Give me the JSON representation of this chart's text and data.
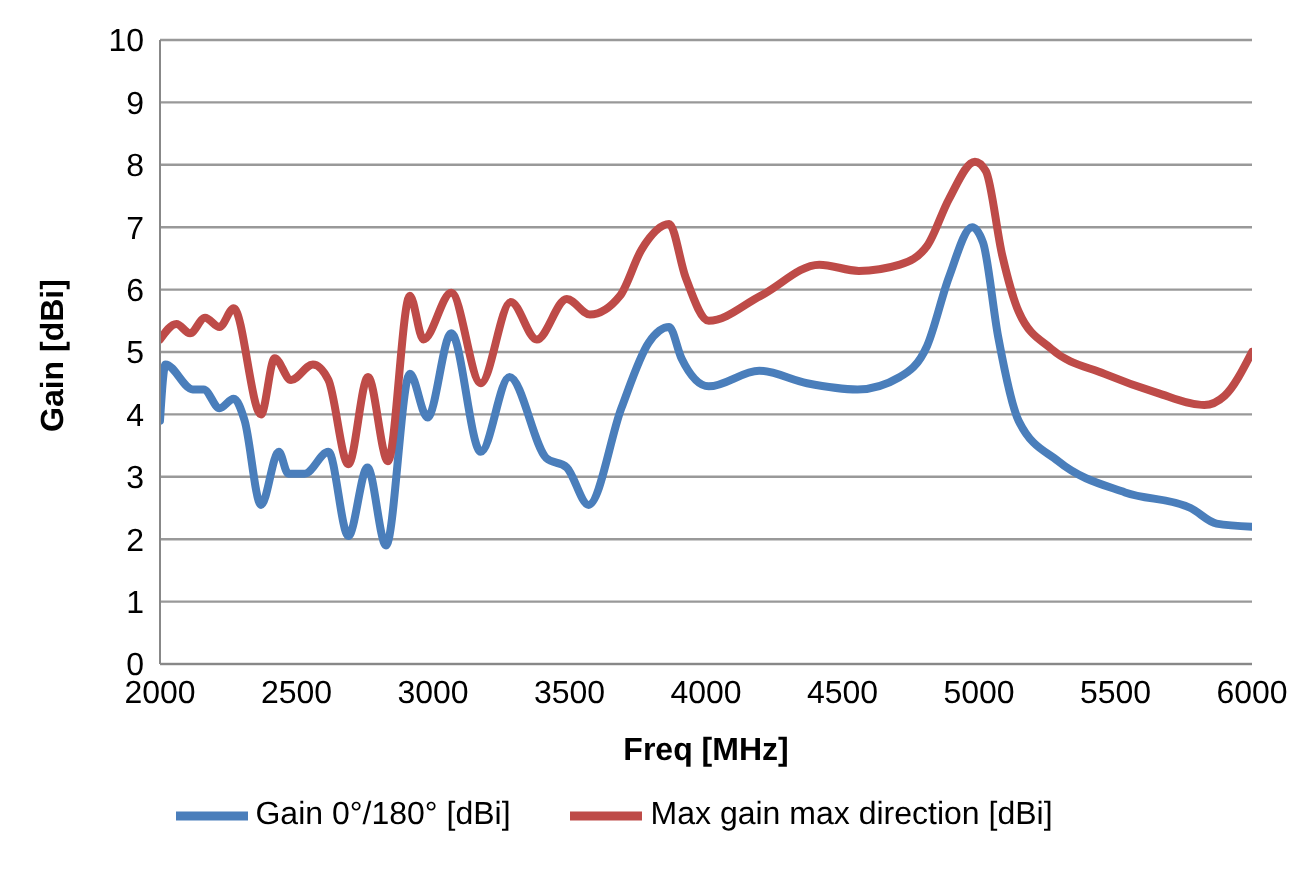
{
  "chart_data": {
    "type": "line",
    "xlabel": "Freq [MHz]",
    "ylabel": "Gain [dBi]",
    "xlim": [
      2000,
      6000
    ],
    "xticks": [
      2000,
      2500,
      3000,
      3500,
      4000,
      4500,
      5000,
      5500,
      6000
    ],
    "ylim": [
      0,
      10
    ],
    "yticks": [
      0,
      1,
      2,
      3,
      4,
      5,
      6,
      7,
      8,
      9,
      10
    ],
    "grid": "y",
    "legend": "bottom",
    "marker": "none",
    "line_style": "solid",
    "series": [
      {
        "name": "Gain 0°/180° [dBi]",
        "color": "#4a7ebb",
        "x": [
          2000,
          2020,
          2120,
          2160,
          2218,
          2270,
          2310,
          2370,
          2435,
          2470,
          2530,
          2617,
          2690,
          2760,
          2828,
          2915,
          2980,
          3067,
          3175,
          3280,
          3415,
          3490,
          3570,
          3690,
          3790,
          3865,
          3910,
          4010,
          4195,
          4370,
          4555,
          4710,
          4810,
          4890,
          4975,
          5015,
          5070,
          5145,
          5290,
          5535,
          5775,
          5870,
          6000
        ],
        "values": [
          3.9,
          4.8,
          4.4,
          4.4,
          4.1,
          4.25,
          3.9,
          2.55,
          3.4,
          3.05,
          3.05,
          3.4,
          2.05,
          3.15,
          1.9,
          4.65,
          3.95,
          5.3,
          3.4,
          4.6,
          3.3,
          3.15,
          2.55,
          4.1,
          5.15,
          5.4,
          4.9,
          4.45,
          4.7,
          4.5,
          4.4,
          4.6,
          5.1,
          6.2,
          7.0,
          6.75,
          5.25,
          3.9,
          3.25,
          2.75,
          2.5,
          2.25,
          2.2
        ]
      },
      {
        "name": "Max gain max direction [dBi]",
        "color": "#be4b48",
        "x": [
          2000,
          2060,
          2110,
          2165,
          2218,
          2270,
          2370,
          2420,
          2480,
          2560,
          2617,
          2690,
          2762,
          2835,
          2915,
          2965,
          3067,
          3175,
          3285,
          3380,
          3490,
          3575,
          3685,
          3765,
          3865,
          3925,
          4010,
          4200,
          4415,
          4560,
          4710,
          4810,
          4890,
          4985,
          5025,
          5085,
          5145,
          5265,
          5460,
          5650,
          5825,
          5900,
          6000
        ],
        "values": [
          5.2,
          5.45,
          5.3,
          5.55,
          5.4,
          5.7,
          4.0,
          4.9,
          4.55,
          4.8,
          4.55,
          3.2,
          4.6,
          3.25,
          5.9,
          5.2,
          5.95,
          4.5,
          5.8,
          5.2,
          5.85,
          5.6,
          5.9,
          6.65,
          7.05,
          6.2,
          5.5,
          5.9,
          6.4,
          6.3,
          6.4,
          6.7,
          7.45,
          8.05,
          7.9,
          6.55,
          5.65,
          5.05,
          4.65,
          4.35,
          4.15,
          4.3,
          5.0
        ]
      }
    ]
  }
}
